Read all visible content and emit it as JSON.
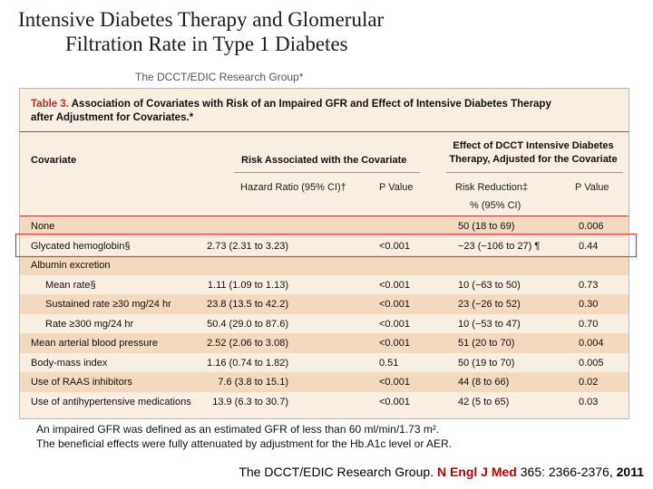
{
  "slide": {
    "title_line1": "Intensive Diabetes Therapy and Glomerular",
    "title_line2": "Filtration Rate in Type 1 Diabetes",
    "authors": "The DCCT/EDIC Research Group*"
  },
  "table": {
    "caption_number": "Table 3.",
    "caption_text": " Association of Covariates with Risk of an Impaired GFR and Effect of Intensive Diabetes Therapy after Adjustment for Covariates.*",
    "headers": {
      "covariate": "Covariate",
      "risk_group": "Risk Associated with the Covariate",
      "effect_group_line1": "Effect of DCCT Intensive Diabetes",
      "effect_group_line2": "Therapy, Adjusted for the Covariate",
      "hazard_ratio": "Hazard Ratio (95% CI)†",
      "p_value_1": "P Value",
      "risk_reduction_line1": "Risk Reduction‡",
      "risk_reduction_line2": "% (95% CI)",
      "p_value_2": "P Value"
    },
    "rows": [
      {
        "label": "None",
        "hr": "",
        "p1": "",
        "rr": "50 (18 to 69)",
        "p2": "0.006",
        "indent": false,
        "shade": true
      },
      {
        "label": "Glycated hemoglobin§",
        "hr": "2.73 (2.31 to 3.23)",
        "p1": "<0.001",
        "rr": "−23 (−106 to 27) ¶",
        "p2": "0.44",
        "indent": false,
        "shade": false
      },
      {
        "label": "Albumin excretion",
        "hr": "",
        "p1": "",
        "rr": "",
        "p2": "",
        "indent": false,
        "shade": true
      },
      {
        "label": "Mean rate§",
        "hr": "1.11 (1.09 to 1.13)",
        "p1": "<0.001",
        "rr": "10 (−63 to 50)",
        "p2": "0.73",
        "indent": true,
        "shade": false
      },
      {
        "label": "Sustained rate ≥30 mg/24 hr",
        "hr": "23.8 (13.5 to 42.2)",
        "p1": "<0.001",
        "rr": "23 (−26 to 52)",
        "p2": "0.30",
        "indent": true,
        "shade": true
      },
      {
        "label": "Rate ≥300 mg/24 hr",
        "hr": "50.4 (29.0 to 87.6)",
        "p1": "<0.001",
        "rr": "10 (−53 to 47)",
        "p2": "0.70",
        "indent": true,
        "shade": false
      },
      {
        "label": "Mean arterial blood pressure",
        "hr": "2.52 (2.06 to 3.08)",
        "p1": "<0.001",
        "rr": "51 (20 to 70)",
        "p2": "0.004",
        "indent": false,
        "shade": true
      },
      {
        "label": "Body-mass index",
        "hr": "1.16 (0.74 to 1.82)",
        "p1": "0.51",
        "rr": "50 (19 to 70)",
        "p2": "0.005",
        "indent": false,
        "shade": false
      },
      {
        "label": "Use of RAAS inhibitors",
        "hr": "7.6 (3.8 to 15.1)",
        "p1": "<0.001",
        "rr": "44 (8 to 66)",
        "p2": "0.02",
        "indent": false,
        "shade": true
      },
      {
        "label": "Use of antihypertensive medications",
        "hr": "13.9 (6.3 to 30.7)",
        "p1": "<0.001",
        "rr": "42 (5 to 65)",
        "p2": "0.03",
        "indent": false,
        "shade": false
      }
    ]
  },
  "footnote": {
    "line1": "An impaired GFR was defined as an estimated GFR of less than 60 ml/min/1.73 m².",
    "line2": "The beneficial effects were fully attenuated by adjustment for the Hb.A1c level or AER."
  },
  "citation": {
    "authors": "The DCCT/EDIC Research Group. ",
    "journal": "N Engl J Med",
    "volume_pages": " 365: 2366-2376, ",
    "year": "2011"
  },
  "colors": {
    "table_background": "#f9eee2",
    "row_shade": "#f3d9bd",
    "rule_red": "#c43c35",
    "highlight_box": "#e03030",
    "journal_red": "#c00000"
  }
}
